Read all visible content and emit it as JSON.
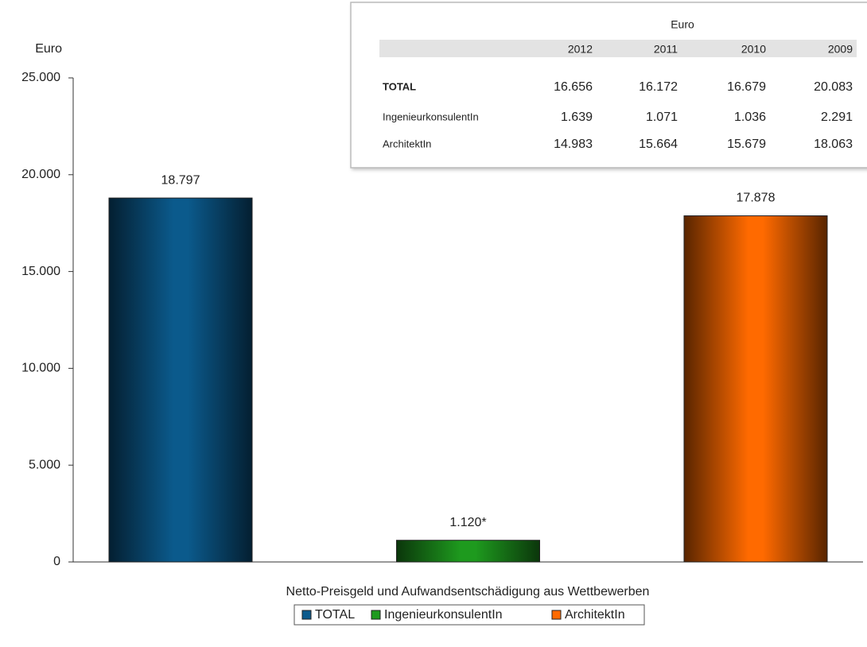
{
  "chart_data": {
    "type": "bar",
    "y_label": "Euro",
    "x_label": "Netto-Preisgeld und Aufwandsentschädigung aus Wettbewerben",
    "series": [
      {
        "name": "TOTAL",
        "color": "#0b5a8c",
        "values": [
          18797
        ],
        "value_labels": [
          "18.797"
        ]
      },
      {
        "name": "IngenieurkonsulentIn",
        "color": "#1e9a1e",
        "values": [
          1120
        ],
        "value_labels": [
          "1.120*"
        ]
      },
      {
        "name": "ArchitektIn",
        "color": "#ff6a00",
        "values": [
          17878
        ],
        "value_labels": [
          "17.878"
        ]
      }
    ],
    "ylim": [
      0,
      25000
    ],
    "yticks": [
      {
        "value": 0,
        "label": "0"
      },
      {
        "value": 5000,
        "label": "5.000"
      },
      {
        "value": 10000,
        "label": "10.000"
      },
      {
        "value": 15000,
        "label": "15.000"
      },
      {
        "value": 20000,
        "label": "20.000"
      },
      {
        "value": 25000,
        "label": "25.000"
      }
    ],
    "legend": "bottom"
  },
  "table": {
    "title": "Euro",
    "columns": [
      "2012",
      "2011",
      "2010",
      "2009"
    ],
    "rows": [
      [
        "TOTAL",
        "16.656",
        "16.172",
        "16.679",
        "20.083"
      ],
      [
        "IngenieurkonsulentIn",
        "1.639",
        "1.071",
        "1.036",
        "2.291"
      ],
      [
        "ArchitektIn",
        "14.983",
        "15.664",
        "15.679",
        "18.063"
      ]
    ]
  }
}
